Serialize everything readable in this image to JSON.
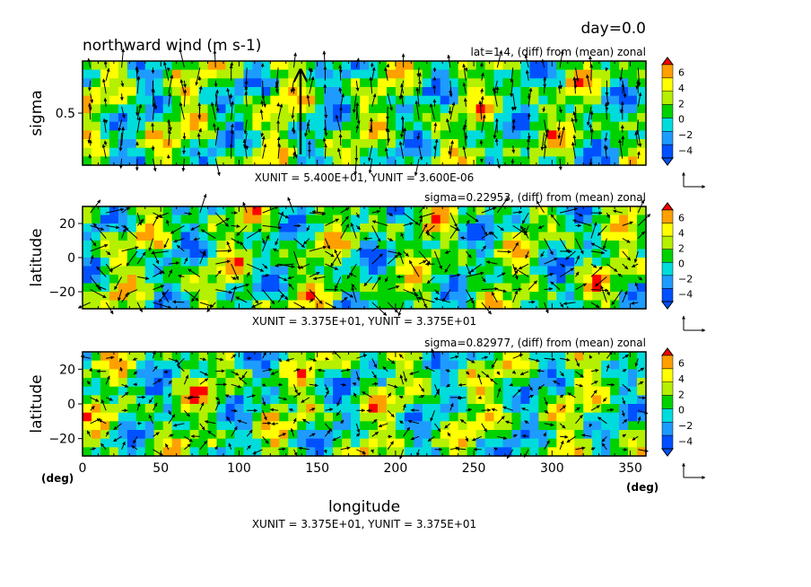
{
  "day_label": "day=0.0",
  "title": "northward wind (m s-1)",
  "xlabel": "longitude",
  "xunit_left": "(deg)",
  "xunit_right": "(deg)",
  "colorbar": {
    "tick_labels": [
      "6",
      "4",
      "2",
      "0",
      "−2",
      "−4"
    ],
    "colors": [
      "#7a00b4",
      "#0050ff",
      "#1e9bff",
      "#00dcdc",
      "#00d200",
      "#b4f000",
      "#ffff00",
      "#ffa000",
      "#ff0000"
    ]
  },
  "panels": [
    {
      "id": "p1",
      "subtitle": "lat=1.4, (diff) from (mean) zonal",
      "ylabel": "sigma",
      "y_tick_labels": [
        "0.5"
      ],
      "unit_text": "XUNIT = 5.400E+01, YUNIT = 3.600E-06"
    },
    {
      "id": "p2",
      "subtitle": "sigma=0.22953, (diff) from (mean) zonal",
      "ylabel": "latitude",
      "y_tick_labels": [
        "20",
        "0",
        "−20"
      ],
      "unit_text": "XUNIT = 3.375E+01, YUNIT = 3.375E+01"
    },
    {
      "id": "p3",
      "subtitle": "sigma=0.82977, (diff) from (mean) zonal",
      "ylabel": "latitude",
      "y_tick_labels": [
        "20",
        "0",
        "−20"
      ],
      "unit_text": "XUNIT = 3.375E+01, YUNIT = 3.375E+01"
    }
  ],
  "chart_data": {
    "type": "heatmap",
    "title": "northward wind (m s-1)",
    "xlabel": "longitude",
    "x_tick_labels": [
      "0",
      "50",
      "100",
      "150",
      "200",
      "250",
      "300",
      "350"
    ],
    "xlim": [
      0,
      360
    ],
    "color_range": [
      -6,
      6
    ],
    "panels": [
      {
        "subtitle": "lat=1.4, (diff) from (mean) zonal",
        "ylabel": "sigma",
        "ylim": [
          0,
          1
        ],
        "y_ticks": [
          0.5
        ]
      },
      {
        "subtitle": "sigma=0.22953, (diff) from (mean) zonal",
        "ylabel": "latitude",
        "ylim": [
          -30,
          30
        ],
        "y_ticks": [
          20,
          0,
          -20
        ]
      },
      {
        "subtitle": "sigma=0.82977, (diff) from (mean) zonal",
        "ylabel": "latitude",
        "ylim": [
          -30,
          30
        ],
        "y_ticks": [
          20,
          0,
          -20
        ]
      }
    ]
  }
}
